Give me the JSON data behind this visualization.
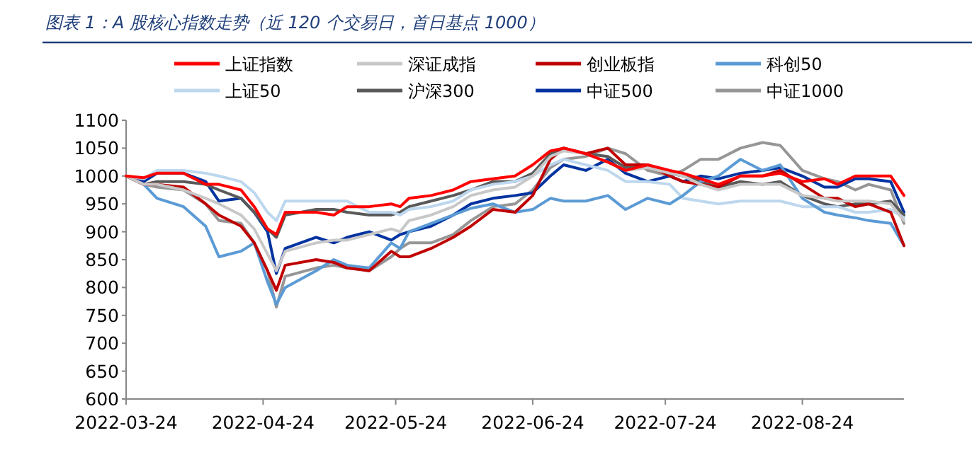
{
  "chart_data": {
    "type": "line",
    "title": "图表 1：A 股核心指数走势（近 120 个交易日，首日基点 1000）",
    "x": [
      "2022-03-24",
      "2022-03-28",
      "2022-03-31",
      "2022-04-06",
      "2022-04-11",
      "2022-04-14",
      "2022-04-19",
      "2022-04-22",
      "2022-04-25",
      "2022-04-27",
      "2022-04-29",
      "2022-05-06",
      "2022-05-10",
      "2022-05-13",
      "2022-05-18",
      "2022-05-23",
      "2022-05-25",
      "2022-05-27",
      "2022-06-01",
      "2022-06-06",
      "2022-06-10",
      "2022-06-15",
      "2022-06-20",
      "2022-06-24",
      "2022-06-28",
      "2022-07-01",
      "2022-07-06",
      "2022-07-11",
      "2022-07-15",
      "2022-07-20",
      "2022-07-25",
      "2022-07-28",
      "2022-08-01",
      "2022-08-05",
      "2022-08-10",
      "2022-08-15",
      "2022-08-19",
      "2022-08-24",
      "2022-08-29",
      "2022-09-01",
      "2022-09-05",
      "2022-09-08",
      "2022-09-13",
      "2022-09-16"
    ],
    "series": [
      {
        "name": "上证指数",
        "color": "#ff0000",
        "values": [
          1000,
          997,
          1005,
          1005,
          985,
          985,
          975,
          945,
          905,
          895,
          935,
          935,
          930,
          945,
          945,
          950,
          945,
          960,
          965,
          975,
          990,
          995,
          1000,
          1020,
          1045,
          1050,
          1040,
          1025,
          1010,
          1020,
          1010,
          1005,
          995,
          985,
          1000,
          1000,
          1005,
          990,
          995,
          985,
          1000,
          1000,
          1000,
          965
        ]
      },
      {
        "name": "深证成指",
        "color": "#c8c8c8",
        "values": [
          1000,
          985,
          985,
          975,
          960,
          950,
          930,
          905,
          860,
          830,
          865,
          880,
          885,
          885,
          895,
          905,
          900,
          920,
          930,
          945,
          965,
          975,
          980,
          1000,
          1035,
          1045,
          1040,
          1025,
          1010,
          1015,
          1005,
          1000,
          985,
          975,
          985,
          985,
          985,
          965,
          960,
          955,
          955,
          955,
          950,
          920
        ]
      },
      {
        "name": "创业板指",
        "color": "#c00000",
        "values": [
          1000,
          985,
          985,
          980,
          950,
          930,
          910,
          880,
          830,
          795,
          840,
          850,
          845,
          835,
          830,
          865,
          855,
          855,
          870,
          890,
          910,
          940,
          935,
          965,
          1030,
          1050,
          1040,
          1050,
          1020,
          1020,
          1000,
          990,
          985,
          980,
          1000,
          1000,
          1010,
          985,
          960,
          960,
          945,
          950,
          935,
          875
        ]
      },
      {
        "name": "科创50",
        "color": "#5b9bd5",
        "values": [
          1000,
          985,
          960,
          945,
          910,
          855,
          865,
          880,
          810,
          770,
          800,
          830,
          850,
          840,
          835,
          880,
          870,
          900,
          915,
          930,
          942,
          950,
          935,
          940,
          960,
          955,
          955,
          965,
          940,
          960,
          950,
          965,
          990,
          1000,
          1030,
          1010,
          1020,
          960,
          935,
          930,
          925,
          920,
          915,
          875
        ]
      },
      {
        "name": "上证50",
        "color": "#bdd7ee",
        "values": [
          1000,
          995,
          1010,
          1010,
          1005,
          1000,
          990,
          970,
          935,
          920,
          955,
          955,
          955,
          955,
          935,
          935,
          930,
          940,
          945,
          955,
          975,
          985,
          990,
          1000,
          1020,
          1030,
          1020,
          1010,
          990,
          990,
          985,
          960,
          955,
          950,
          955,
          955,
          955,
          945,
          945,
          945,
          935,
          935,
          940,
          925
        ]
      },
      {
        "name": "沪深300",
        "color": "#595959",
        "values": [
          1000,
          985,
          990,
          990,
          985,
          975,
          960,
          935,
          905,
          890,
          930,
          940,
          940,
          935,
          930,
          930,
          935,
          945,
          955,
          965,
          975,
          990,
          990,
          1005,
          1040,
          1050,
          1040,
          1035,
          1015,
          1015,
          1005,
          1000,
          990,
          980,
          990,
          985,
          990,
          965,
          950,
          945,
          950,
          950,
          955,
          930
        ]
      },
      {
        "name": "中证500",
        "color": "#0033a0",
        "values": [
          1000,
          990,
          1005,
          1005,
          990,
          955,
          960,
          935,
          900,
          825,
          870,
          890,
          880,
          890,
          900,
          885,
          895,
          900,
          910,
          930,
          950,
          960,
          965,
          970,
          1000,
          1020,
          1010,
          1030,
          1005,
          990,
          1000,
          990,
          1000,
          995,
          1005,
          1010,
          1015,
          1000,
          980,
          980,
          995,
          995,
          990,
          935
        ]
      },
      {
        "name": "中证1000",
        "color": "#969696",
        "values": [
          1000,
          985,
          980,
          975,
          950,
          920,
          915,
          880,
          830,
          765,
          820,
          835,
          840,
          835,
          830,
          855,
          870,
          880,
          880,
          895,
          920,
          945,
          950,
          975,
          1015,
          1030,
          1035,
          1050,
          1040,
          1010,
          1000,
          1010,
          1030,
          1030,
          1050,
          1060,
          1055,
          1010,
          995,
          990,
          975,
          985,
          975,
          915
        ]
      }
    ],
    "xlim": [
      "2022-03-24",
      "2022-09-16"
    ],
    "ylim": [
      600,
      1100
    ],
    "xticks": [
      "2022-03-24",
      "2022-04-24",
      "2022-05-24",
      "2022-06-24",
      "2022-07-24",
      "2022-08-24"
    ],
    "yticks": [
      600,
      650,
      700,
      750,
      800,
      850,
      900,
      950,
      1000,
      1050,
      1100
    ],
    "legend": "top"
  }
}
